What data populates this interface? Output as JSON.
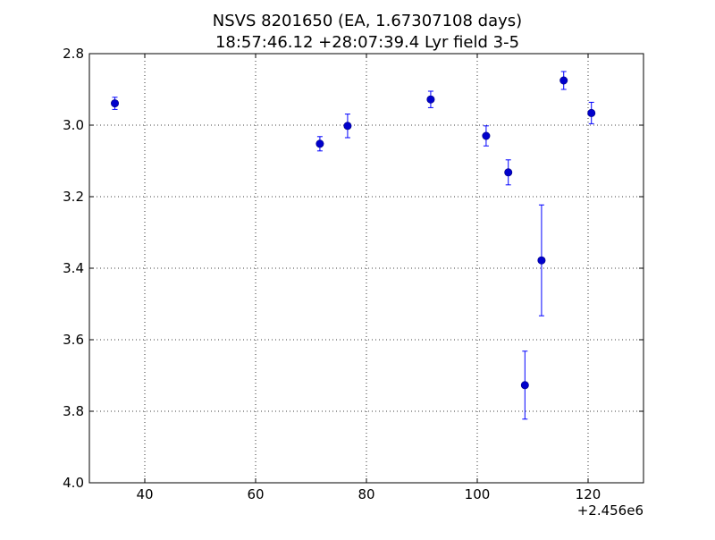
{
  "chart_data": {
    "type": "scatter",
    "title_line1": "NSVS 8201650 (EA, 1.67307108 days)",
    "title_line2": "18:57:46.12 +28:07:39.4 Lyr field 3-5",
    "xlabel": "",
    "ylabel": "",
    "xlim": [
      30,
      130
    ],
    "ylim": [
      4.0,
      2.8
    ],
    "y_inverted": true,
    "x_offset_label": "+2.456e6",
    "x_ticks": [
      40,
      60,
      80,
      100,
      120
    ],
    "x_tick_labels": [
      "40",
      "60",
      "80",
      "100",
      "120"
    ],
    "y_ticks": [
      2.8,
      3.0,
      3.2,
      3.4,
      3.6,
      3.8,
      4.0
    ],
    "y_tick_labels": [
      "2.8",
      "3.0",
      "3.2",
      "3.4",
      "3.6",
      "3.8",
      "4.0"
    ],
    "grid": true,
    "grid_style": "dotted",
    "marker_color": "#0000cc",
    "errorbar_color": "#0000ff",
    "points": [
      {
        "x": 34.6,
        "y": 2.939,
        "err": 0.017
      },
      {
        "x": 71.6,
        "y": 3.052,
        "err": 0.02
      },
      {
        "x": 76.6,
        "y": 3.002,
        "err": 0.033
      },
      {
        "x": 91.6,
        "y": 2.928,
        "err": 0.023
      },
      {
        "x": 101.6,
        "y": 3.03,
        "err": 0.028
      },
      {
        "x": 105.6,
        "y": 3.132,
        "err": 0.035
      },
      {
        "x": 108.6,
        "y": 3.727,
        "err": 0.095
      },
      {
        "x": 111.6,
        "y": 3.378,
        "err": 0.155
      },
      {
        "x": 115.6,
        "y": 2.875,
        "err": 0.025
      },
      {
        "x": 120.6,
        "y": 2.966,
        "err": 0.03
      }
    ]
  }
}
